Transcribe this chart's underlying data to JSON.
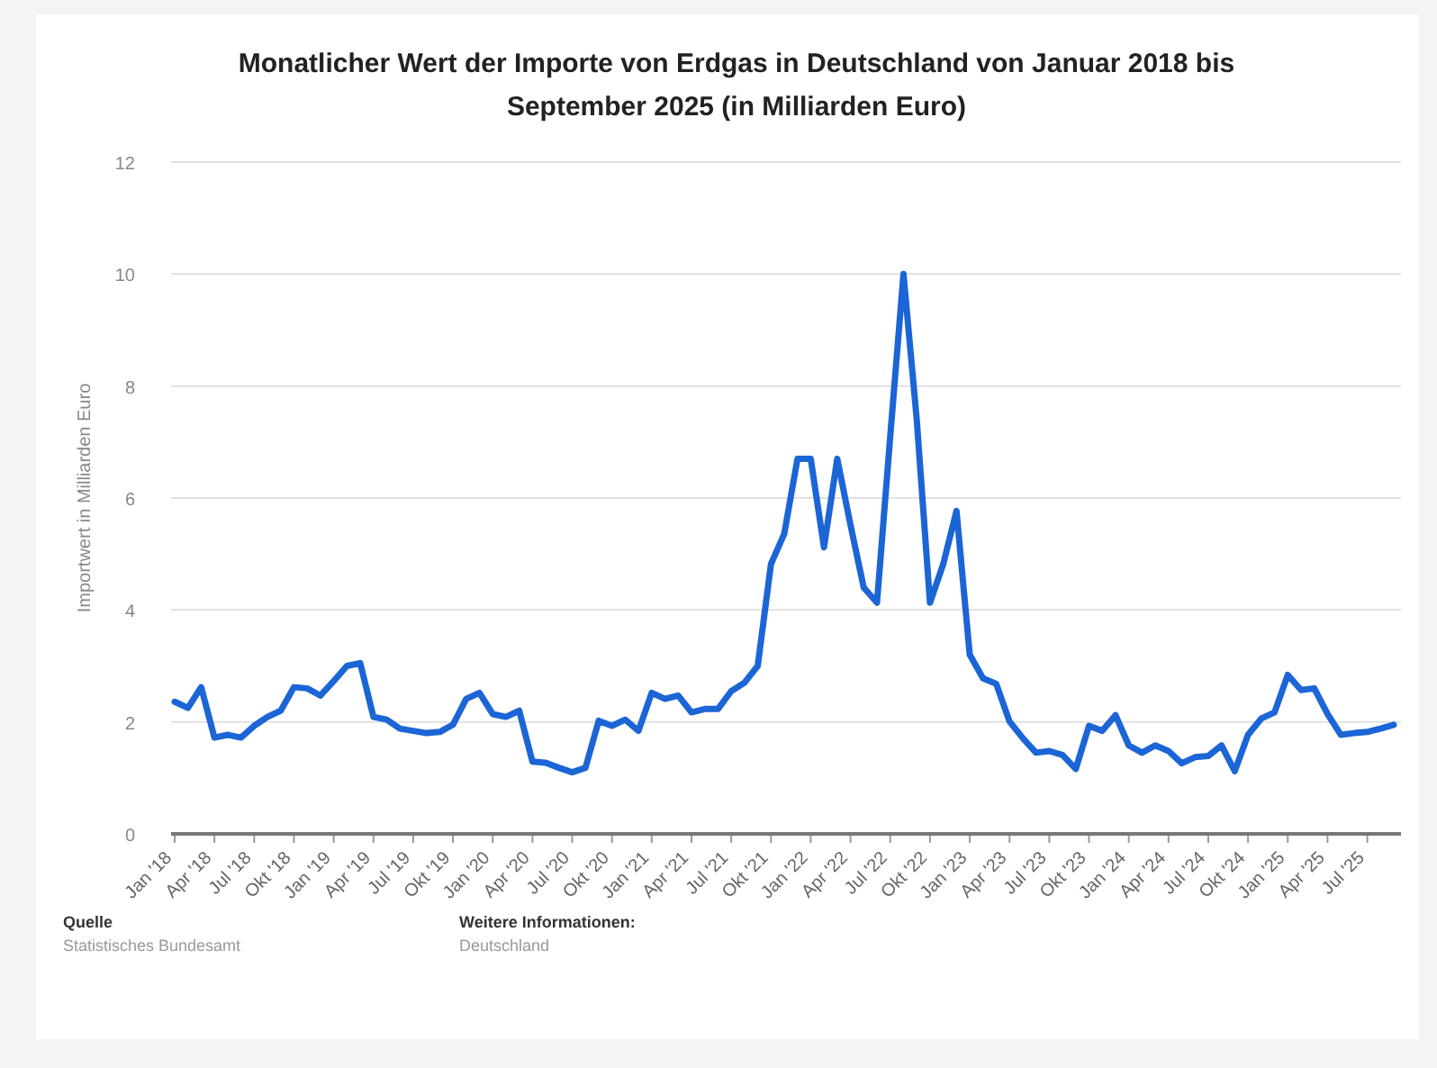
{
  "chart_data": {
    "type": "line",
    "title": "Monatlicher Wert der Importe von Erdgas in Deutschland von Januar 2018 bis September 2025 (in Milliarden Euro)",
    "ylabel": "Importwert in Milliarden Euro",
    "categories": [
      "Jan '18",
      null,
      null,
      "Apr '18",
      null,
      null,
      "Jul '18",
      null,
      null,
      "Okt '18",
      null,
      null,
      "Jan '19",
      null,
      null,
      "Apr '19",
      null,
      null,
      "Jul '19",
      null,
      null,
      "Okt '19",
      null,
      null,
      "Jan '20",
      null,
      null,
      "Apr '20",
      null,
      null,
      "Jul '20",
      null,
      null,
      "Okt '20",
      null,
      null,
      "Jan '21",
      null,
      null,
      "Apr '21",
      null,
      null,
      "Jul '21",
      null,
      null,
      "Okt '21",
      null,
      null,
      "Jan '22",
      null,
      null,
      "Apr '22",
      null,
      null,
      "Jul '22",
      null,
      null,
      "Okt '22",
      null,
      null,
      "Jan '23",
      null,
      null,
      "Apr '23",
      null,
      null,
      "Jul '23",
      null,
      null,
      "Okt '23",
      null,
      null,
      "Jan '24",
      null,
      null,
      "Apr '24",
      null,
      null,
      "Jul '24",
      null,
      null,
      "Okt '24",
      null,
      null,
      "Jan '25",
      null,
      null,
      "Apr '25",
      null,
      null,
      "Jul '25",
      null,
      null
    ],
    "series": [
      {
        "color": "#1b65d6",
        "values": [
          2.36,
          2.25,
          2.62,
          1.72,
          1.77,
          1.72,
          1.93,
          2.09,
          2.2,
          2.62,
          2.6,
          2.47,
          2.73,
          3.0,
          3.05,
          2.09,
          2.04,
          1.88,
          1.84,
          1.8,
          1.82,
          1.95,
          2.41,
          2.52,
          2.14,
          2.09,
          2.2,
          1.29,
          1.27,
          1.18,
          1.1,
          1.18,
          2.02,
          1.93,
          2.04,
          1.84,
          2.52,
          2.41,
          2.47,
          2.17,
          2.23,
          2.23,
          2.55,
          2.7,
          3.0,
          4.82,
          5.36,
          6.7,
          6.7,
          5.12,
          6.7,
          5.52,
          4.4,
          4.13,
          7.1,
          10.0,
          7.4,
          4.13,
          4.82,
          5.77,
          3.2,
          2.78,
          2.68,
          2.01,
          1.71,
          1.45,
          1.48,
          1.41,
          1.16,
          1.93,
          1.84,
          2.12,
          1.58,
          1.45,
          1.58,
          1.48,
          1.26,
          1.37,
          1.39,
          1.58,
          1.12,
          1.77,
          2.06,
          2.17,
          2.84,
          2.57,
          2.6,
          2.14,
          1.77,
          1.8,
          1.82,
          1.88,
          1.95
        ]
      }
    ],
    "ylim": [
      0,
      12
    ],
    "yticks": [
      0,
      2,
      4,
      6,
      8,
      10,
      12
    ],
    "grid": "y",
    "marker": "none",
    "line_style": "solid",
    "annotations": [
      "Quelle",
      "Statistisches Bundesamt",
      "Weitere Informationen:",
      "Deutschland"
    ]
  }
}
